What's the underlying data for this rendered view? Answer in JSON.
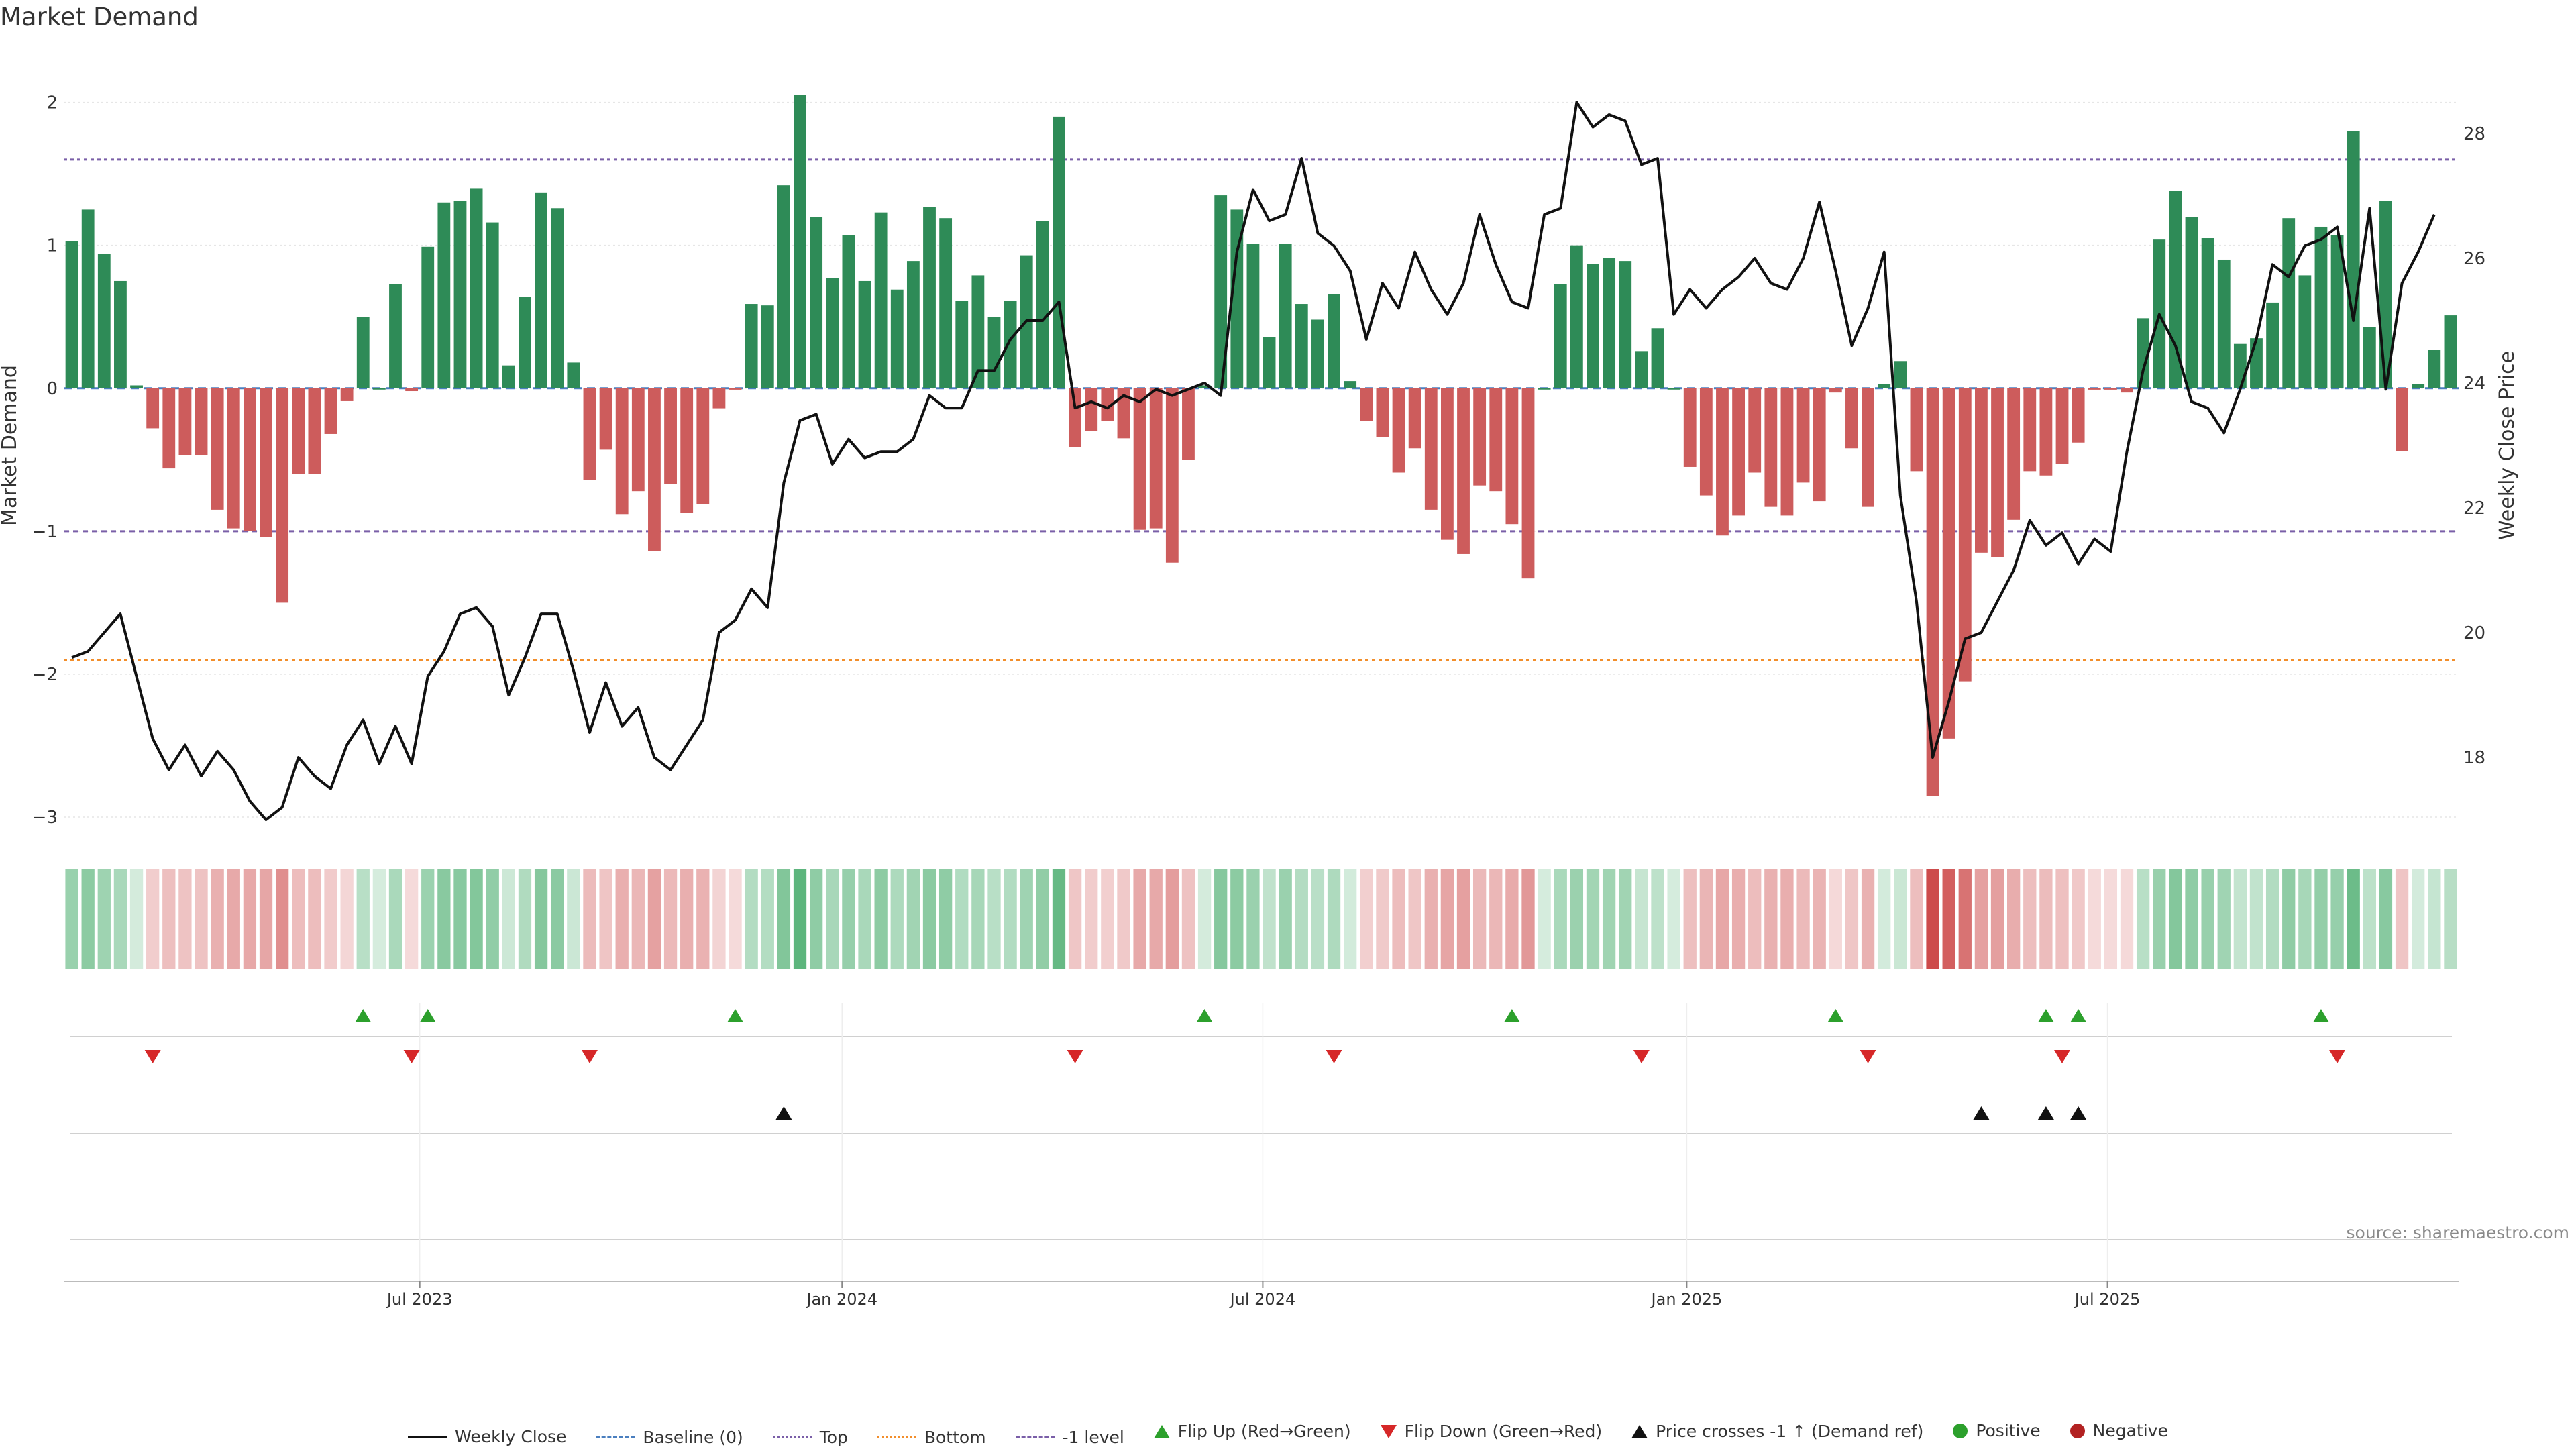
{
  "title": "Market Demand",
  "source": "source: sharemaestro.com",
  "colors": {
    "pos": "#2e8b57",
    "neg": "#cd5c5c",
    "line": "#111111",
    "top": "#7a5fa8",
    "bottom": "#f28e2b",
    "flipUp": "#2ca02c",
    "flipDown": "#d62728",
    "cross": "#111111"
  },
  "legend": [
    {
      "label": "Weekly Close",
      "icon": "solid-line"
    },
    {
      "label": "Baseline (0)",
      "icon": "dashed-line-blue"
    },
    {
      "label": "Top",
      "icon": "dotted-line-purple"
    },
    {
      "label": "Bottom",
      "icon": "dotted-line-orange"
    },
    {
      "label": "-1 level",
      "icon": "dashed-line-purple"
    },
    {
      "label": "Flip Up (Red→Green)",
      "icon": "green-triangle-up"
    },
    {
      "label": "Flip Down (Green→Red)",
      "icon": "red-triangle-down"
    },
    {
      "label": "Price crosses -1 ↑ (Demand ref)",
      "icon": "black-triangle-up"
    },
    {
      "label": "Positive",
      "icon": "green-circle"
    },
    {
      "label": "Negative",
      "icon": "red-circle"
    }
  ],
  "chart_data": {
    "type": "bar",
    "title": "Market Demand",
    "ylabel": "Market Demand",
    "y2label": "Weekly Close Price",
    "ylim": [
      -3.15,
      2.35
    ],
    "y2lim": [
      16.7,
      29.3
    ],
    "yticks": [
      -3,
      -2,
      -1,
      0,
      1,
      2
    ],
    "y2ticks": [
      18,
      20,
      22,
      24,
      26,
      28
    ],
    "reference_lines": {
      "top": 1.6,
      "bottom": -1.9,
      "minus_one": -1.0,
      "baseline": 0
    },
    "xticks": [
      {
        "label": "Jul 2023",
        "week": 21.5
      },
      {
        "label": "Jan 2024",
        "week": 47.6
      },
      {
        "label": "Jul 2024",
        "week": 73.6
      },
      {
        "label": "Jan 2025",
        "week": 99.8
      },
      {
        "label": "Jul 2025",
        "week": 125.8
      }
    ],
    "demand": [
      1.03,
      1.25,
      0.94,
      0.75,
      0.02,
      -0.28,
      -0.56,
      -0.47,
      -0.47,
      -0.85,
      -0.98,
      -1.0,
      -1.04,
      -1.5,
      -0.6,
      -0.6,
      -0.32,
      -0.09,
      0.5,
      0.0,
      0.73,
      -0.02,
      0.99,
      1.3,
      1.31,
      1.4,
      1.16,
      0.16,
      0.64,
      1.37,
      1.26,
      0.18,
      -0.64,
      -0.43,
      -0.88,
      -0.72,
      -1.14,
      -0.67,
      -0.87,
      -0.81,
      -0.14,
      -0.01,
      0.59,
      0.58,
      1.42,
      2.05,
      1.2,
      0.77,
      1.07,
      0.75,
      1.23,
      0.69,
      0.89,
      1.27,
      1.19,
      0.61,
      0.79,
      0.5,
      0.61,
      0.93,
      1.17,
      1.9,
      -0.41,
      -0.3,
      -0.23,
      -0.35,
      -0.99,
      -0.98,
      -1.22,
      -0.5,
      0.02,
      1.35,
      1.25,
      1.01,
      0.36,
      1.01,
      0.59,
      0.48,
      0.66,
      0.05,
      -0.23,
      -0.34,
      -0.59,
      -0.42,
      -0.85,
      -1.06,
      -1.16,
      -0.68,
      -0.72,
      -0.95,
      -1.33,
      0.0,
      0.73,
      1.0,
      0.87,
      0.91,
      0.89,
      0.26,
      0.42,
      0.0,
      -0.55,
      -0.75,
      -1.03,
      -0.89,
      -0.59,
      -0.83,
      -0.89,
      -0.66,
      -0.79,
      -0.03,
      -0.42,
      -0.83,
      0.03,
      0.19,
      -0.58,
      -2.85,
      -2.45,
      -2.05,
      -1.15,
      -1.18,
      -0.92,
      -0.58,
      -0.61,
      -0.53,
      -0.38,
      -0.01,
      -0.01,
      -0.03,
      0.49,
      1.04,
      1.38,
      1.2,
      1.05,
      0.9,
      0.31,
      0.35,
      0.6,
      1.19,
      0.79,
      1.13,
      1.07,
      1.8,
      0.43,
      1.31,
      -0.44,
      0.03,
      0.27,
      0.51
    ],
    "close": [
      19.6,
      19.7,
      20.0,
      20.3,
      19.3,
      18.3,
      17.8,
      18.2,
      17.7,
      18.1,
      17.8,
      17.3,
      17.0,
      17.2,
      18.0,
      17.7,
      17.5,
      18.2,
      18.6,
      17.9,
      18.5,
      17.9,
      19.3,
      19.7,
      20.3,
      20.4,
      20.1,
      19.0,
      19.6,
      20.3,
      20.3,
      19.4,
      18.4,
      19.2,
      18.5,
      18.8,
      18.0,
      17.8,
      18.2,
      18.6,
      20.0,
      20.2,
      20.7,
      20.4,
      22.4,
      23.4,
      23.5,
      22.7,
      23.1,
      22.8,
      22.9,
      22.9,
      23.1,
      23.8,
      23.6,
      23.6,
      24.2,
      24.2,
      24.7,
      25.0,
      25.0,
      25.3,
      23.6,
      23.7,
      23.6,
      23.8,
      23.7,
      23.9,
      23.8,
      23.9,
      24.0,
      23.8,
      26.1,
      27.1,
      26.6,
      26.7,
      27.6,
      26.4,
      26.2,
      25.8,
      24.7,
      25.6,
      25.2,
      26.1,
      25.5,
      25.1,
      25.6,
      26.7,
      25.9,
      25.3,
      25.2,
      26.7,
      26.8,
      28.5,
      28.1,
      28.3,
      28.2,
      27.5,
      27.6,
      25.1,
      25.5,
      25.2,
      25.5,
      25.7,
      26.0,
      25.6,
      25.5,
      26.0,
      26.9,
      25.8,
      24.6,
      25.2,
      26.1,
      22.2,
      20.5,
      18.0,
      18.9,
      19.9,
      20.0,
      20.5,
      21.0,
      21.8,
      21.4,
      21.6,
      21.1,
      21.5,
      21.3,
      22.9,
      24.2,
      25.1,
      24.6,
      23.7,
      23.6,
      23.2,
      23.9,
      24.7,
      25.9,
      25.7,
      26.2,
      26.3,
      26.5,
      25.0,
      26.8,
      23.9,
      25.6,
      26.1,
      26.7
    ],
    "heat_strip": "one cell per week, green for positive demand, red for negative, darker for larger magnitude",
    "flip_up_weeks": [
      18,
      22,
      41,
      70,
      89,
      109,
      122,
      124,
      139
    ],
    "flip_down_weeks": [
      5,
      21,
      32,
      62,
      78,
      97,
      111,
      123,
      140
    ],
    "price_cross_weeks": [
      44,
      118,
      122,
      124
    ]
  }
}
